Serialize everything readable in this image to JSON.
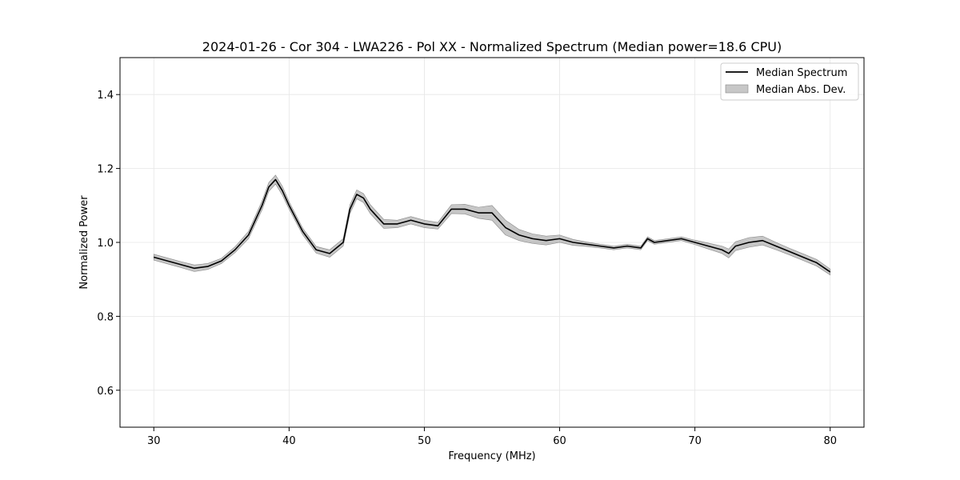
{
  "chart_data": {
    "type": "line",
    "title": "2024-01-26 - Cor 304 - LWA226 - Pol XX - Normalized Spectrum (Median power=18.6 CPU)",
    "xlabel": "Frequency (MHz)",
    "ylabel": "Normalized Power",
    "xlim": [
      27.5,
      82.5
    ],
    "ylim": [
      0.5,
      1.5
    ],
    "xticks": [
      30,
      40,
      50,
      60,
      70,
      80
    ],
    "yticks": [
      0.6,
      0.8,
      1.0,
      1.2,
      1.4
    ],
    "grid": true,
    "legend_position": "top-right",
    "colors": {
      "line": "#000000",
      "band": "#999999"
    },
    "series": [
      {
        "name": "Median Spectrum",
        "kind": "line",
        "x": [
          30,
          31,
          32,
          33,
          34,
          35,
          36,
          37,
          38,
          38.5,
          39,
          39.5,
          40,
          41,
          42,
          43,
          44,
          44.5,
          45,
          45.5,
          46,
          47,
          48,
          49,
          50,
          51,
          52,
          53,
          54,
          55,
          56,
          57,
          58,
          59,
          60,
          61,
          62,
          63,
          64,
          65,
          66,
          66.5,
          67,
          68,
          69,
          70,
          71,
          72,
          72.5,
          73,
          74,
          75,
          76,
          77,
          78,
          79,
          80
        ],
        "y": [
          0.96,
          0.95,
          0.94,
          0.93,
          0.935,
          0.95,
          0.98,
          1.02,
          1.1,
          1.15,
          1.17,
          1.14,
          1.1,
          1.03,
          0.98,
          0.97,
          1.0,
          1.09,
          1.13,
          1.12,
          1.09,
          1.05,
          1.05,
          1.06,
          1.05,
          1.045,
          1.09,
          1.09,
          1.08,
          1.08,
          1.04,
          1.02,
          1.01,
          1.005,
          1.01,
          1.0,
          0.995,
          0.99,
          0.985,
          0.99,
          0.985,
          1.01,
          1.0,
          1.005,
          1.01,
          1.0,
          0.99,
          0.98,
          0.97,
          0.99,
          1.0,
          1.005,
          0.99,
          0.975,
          0.96,
          0.945,
          0.92
        ]
      },
      {
        "name": "Median Abs. Dev.",
        "kind": "band",
        "x": [
          30,
          31,
          32,
          33,
          34,
          35,
          36,
          37,
          38,
          38.5,
          39,
          39.5,
          40,
          41,
          42,
          43,
          44,
          44.5,
          45,
          45.5,
          46,
          47,
          48,
          49,
          50,
          51,
          52,
          53,
          54,
          55,
          56,
          57,
          58,
          59,
          60,
          61,
          62,
          63,
          64,
          65,
          66,
          66.5,
          67,
          68,
          69,
          70,
          71,
          72,
          72.5,
          73,
          74,
          75,
          76,
          77,
          78,
          79,
          80
        ],
        "spread": [
          0.008,
          0.008,
          0.008,
          0.009,
          0.008,
          0.007,
          0.008,
          0.01,
          0.012,
          0.012,
          0.012,
          0.012,
          0.01,
          0.009,
          0.009,
          0.01,
          0.01,
          0.012,
          0.012,
          0.012,
          0.012,
          0.012,
          0.01,
          0.01,
          0.01,
          0.009,
          0.012,
          0.013,
          0.015,
          0.02,
          0.02,
          0.015,
          0.013,
          0.012,
          0.01,
          0.008,
          0.006,
          0.005,
          0.005,
          0.005,
          0.005,
          0.005,
          0.005,
          0.005,
          0.005,
          0.006,
          0.008,
          0.01,
          0.012,
          0.012,
          0.013,
          0.012,
          0.01,
          0.009,
          0.009,
          0.009,
          0.008
        ]
      }
    ]
  }
}
